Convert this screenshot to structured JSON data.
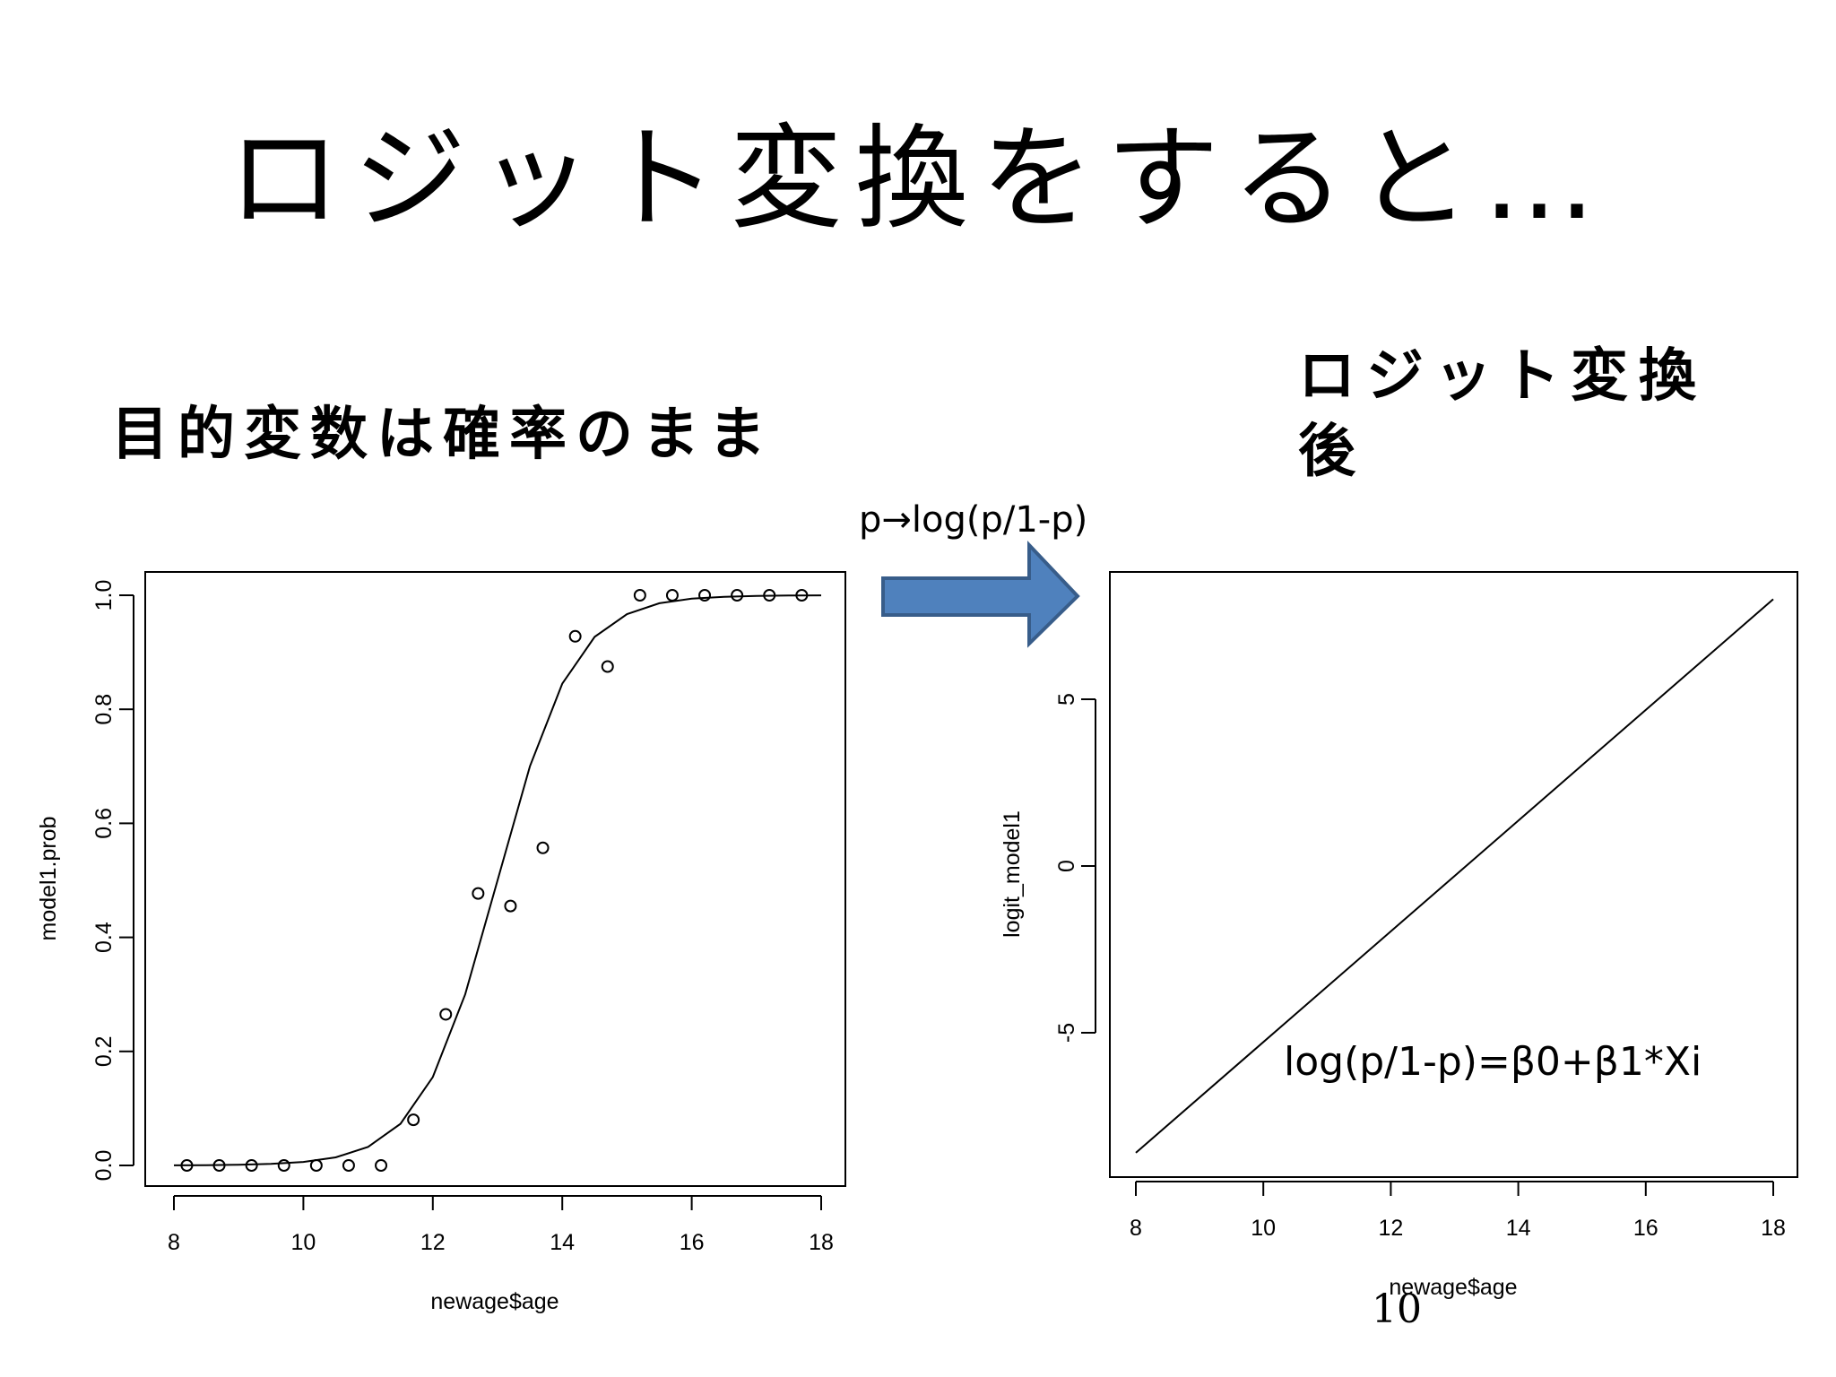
{
  "slide": {
    "title": "ロジット変換をすると…",
    "left_heading": "目的変数は確率のまま",
    "right_heading": "ロジット変換後",
    "transform_label": "p→log(p/1-p)",
    "formula": "log(p/1-p)=β0+β1*Xi",
    "page_number": "10",
    "arrow_color": "#4f81bd",
    "arrow_border": "#385d8a"
  },
  "chart_data": [
    {
      "type": "scatter",
      "xlabel": "newage$age",
      "ylabel": "model1.prob",
      "xlim": [
        8,
        18
      ],
      "ylim": [
        0,
        1
      ],
      "xticks": [
        "8",
        "10",
        "12",
        "14",
        "16",
        "18"
      ],
      "yticks": [
        "0.0",
        "0.2",
        "0.4",
        "0.6",
        "0.8",
        "1.0"
      ],
      "points": {
        "x": [
          8.2,
          8.7,
          9.2,
          9.7,
          10.2,
          10.7,
          11.2,
          11.7,
          12.2,
          12.7,
          13.2,
          13.7,
          14.2,
          14.7,
          15.2,
          15.7,
          16.2,
          16.7,
          17.2,
          17.7
        ],
        "y": [
          0.0,
          0.0,
          0.0,
          0.0,
          0.0,
          0.0,
          0.0,
          0.08,
          0.265,
          0.477,
          0.455,
          0.557,
          0.928,
          0.875,
          1.0,
          1.0,
          1.0,
          1.0,
          1.0,
          1.0
        ]
      },
      "fitted_curve": {
        "x": [
          8,
          8.5,
          9,
          9.5,
          10,
          10.5,
          11,
          11.5,
          12,
          12.5,
          13,
          13.5,
          14,
          14.5,
          15,
          15.5,
          16,
          16.5,
          17,
          17.5,
          18
        ],
        "y": [
          0.0002,
          0.0005,
          0.0011,
          0.0026,
          0.0062,
          0.0142,
          0.0325,
          0.073,
          0.155,
          0.3,
          0.5,
          0.7,
          0.845,
          0.927,
          0.967,
          0.986,
          0.994,
          0.9974,
          0.9989,
          0.9995,
          0.9998
        ]
      }
    },
    {
      "type": "line",
      "xlabel": "newage$age",
      "ylabel": "logit_model1",
      "xlim": [
        8,
        18
      ],
      "ylim": [
        -9,
        9
      ],
      "xticks": [
        "8",
        "10",
        "12",
        "14",
        "16",
        "18"
      ],
      "yticks": [
        "-5",
        "0",
        "5"
      ],
      "series": [
        {
          "x": [
            8,
            18
          ],
          "y": [
            -8.6,
            8.0
          ]
        }
      ]
    }
  ]
}
